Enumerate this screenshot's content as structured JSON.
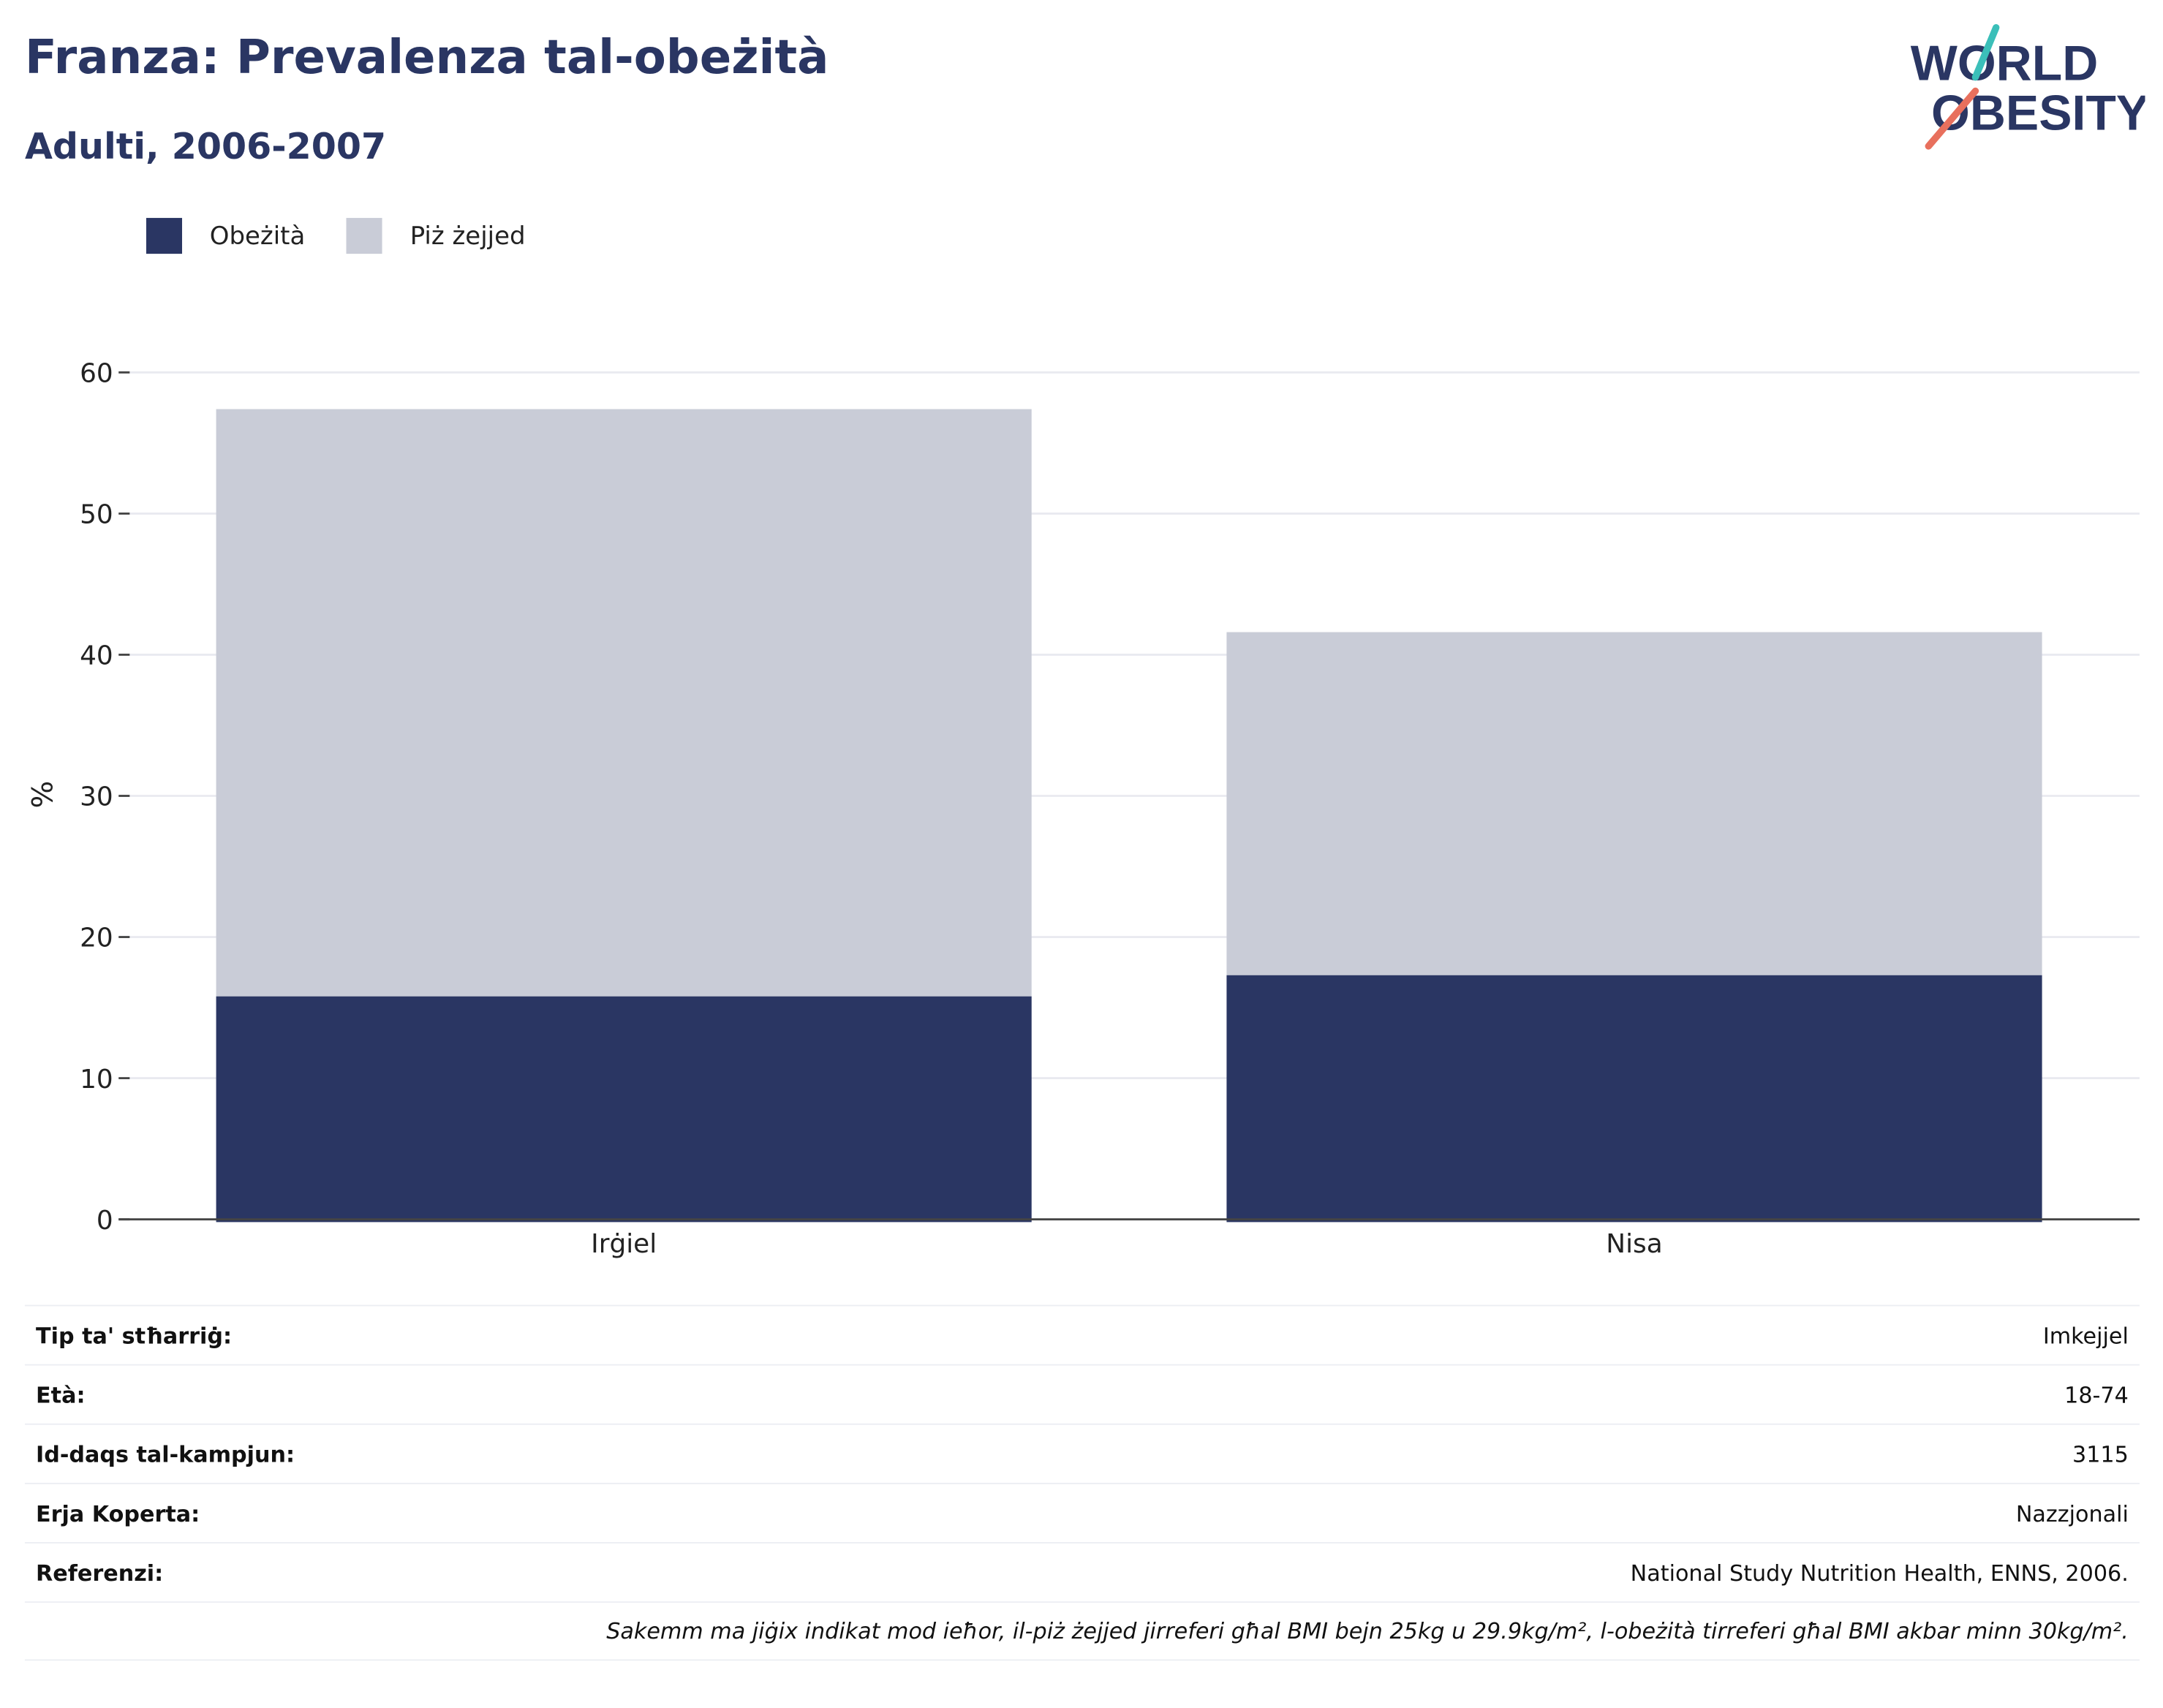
{
  "header": {
    "title": "Franza: Prevalenza tal-obeżità",
    "subtitle": "Adulti, 2006-2007"
  },
  "logo": {
    "line1": "WORLD",
    "line2": "OBESITY",
    "accent_teal": "#3bbfb9",
    "accent_coral": "#e8705d",
    "text_color": "#2a3663"
  },
  "legend": [
    {
      "label": "Obeżità",
      "color": "#2a3663"
    },
    {
      "label": "Piż żejjed",
      "color": "#c9ccd7"
    }
  ],
  "chart_data": {
    "type": "bar",
    "stacked": true,
    "categories": [
      "Irġiel",
      "Nisa"
    ],
    "series": [
      {
        "name": "Obeżità",
        "color": "#2a3663",
        "values": [
          15.8,
          17.3
        ]
      },
      {
        "name": "Piż żejjed",
        "color": "#c9ccd7",
        "values": [
          41.6,
          24.3
        ]
      }
    ],
    "ylabel": "%",
    "ylim": [
      0,
      60
    ],
    "yticks": [
      0,
      10,
      20,
      30,
      40,
      50,
      60
    ],
    "grid": true,
    "legend_position": "top-left"
  },
  "info": [
    {
      "label": "Tip ta' stħarriġ:",
      "value": "Imkejjel"
    },
    {
      "label": "Età:",
      "value": "18-74"
    },
    {
      "label": "Id-daqs tal-kampjun:",
      "value": "3115"
    },
    {
      "label": "Erja Koperta:",
      "value": "Nazzjonali"
    },
    {
      "label": "Referenzi:",
      "value": "National Study Nutrition Health, ENNS, 2006."
    }
  ],
  "note": "Sakemm ma jiġix indikat mod ieħor, il-piż żejjed jirreferi għal BMI bejn 25kg u 29.9kg/m², l-obeżità tirreferi għal BMI akbar minn 30kg/m²."
}
